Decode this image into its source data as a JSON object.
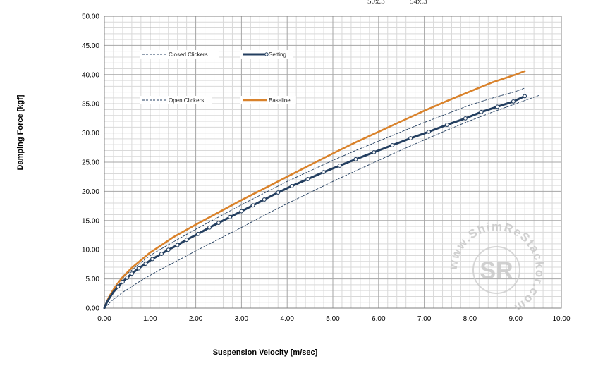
{
  "top_clipped_labels": [
    "50x.3",
    "54x.3"
  ],
  "watermark": {
    "monogram": "SR",
    "ring_text": "www.ShimReStackor.com"
  },
  "chart_data": {
    "type": "line",
    "xlabel": "Suspension Velocity [m/sec]",
    "ylabel": "Damping Force [kgf]",
    "xlim": [
      0,
      10
    ],
    "ylim": [
      0,
      50
    ],
    "x_ticks": [
      "0.00",
      "1.00",
      "2.00",
      "3.00",
      "4.00",
      "5.00",
      "6.00",
      "7.00",
      "8.00",
      "9.00",
      "10.00"
    ],
    "y_ticks": [
      "0.00",
      "5.00",
      "10.00",
      "15.00",
      "20.00",
      "25.00",
      "30.00",
      "35.00",
      "40.00",
      "45.00",
      "50.00"
    ],
    "grid": true,
    "legend_position": "top-left, inside plot",
    "series": [
      {
        "name": "Setting",
        "color": "#243f60",
        "style": "solid-with-markers",
        "x": [
          0,
          0.05,
          0.1,
          0.15,
          0.2,
          0.25,
          0.3,
          0.4,
          0.5,
          0.6,
          0.75,
          0.9,
          1.05,
          1.25,
          1.4,
          1.6,
          1.8,
          2.05,
          2.3,
          2.5,
          2.75,
          3.0,
          3.25,
          3.5,
          3.8,
          4.1,
          4.45,
          4.8,
          5.15,
          5.5,
          5.9,
          6.3,
          6.7,
          7.1,
          7.5,
          7.9,
          8.25,
          8.6,
          8.95,
          9.2
        ],
        "y": [
          0,
          0.9,
          1.6,
          2.2,
          2.8,
          3.2,
          3.7,
          4.5,
          5.2,
          5.9,
          6.8,
          7.6,
          8.4,
          9.3,
          10.0,
          10.8,
          11.7,
          12.7,
          13.8,
          14.6,
          15.6,
          16.6,
          17.6,
          18.6,
          19.8,
          20.9,
          22.1,
          23.3,
          24.4,
          25.5,
          26.7,
          27.9,
          29.1,
          30.2,
          31.4,
          32.5,
          33.6,
          34.5,
          35.4,
          36.3
        ]
      },
      {
        "name": "Baseline",
        "color": "#d9822b",
        "style": "solid",
        "x": [
          0,
          0.05,
          0.1,
          0.2,
          0.3,
          0.4,
          0.6,
          0.8,
          1.0,
          1.25,
          1.5,
          2.0,
          2.5,
          3.0,
          3.5,
          4.0,
          4.5,
          5.0,
          5.5,
          6.0,
          6.5,
          7.0,
          7.5,
          8.0,
          8.5,
          9.0,
          9.2
        ],
        "y": [
          0,
          1.0,
          1.9,
          3.2,
          4.3,
          5.3,
          6.9,
          8.2,
          9.5,
          10.8,
          12.1,
          14.3,
          16.4,
          18.5,
          20.5,
          22.5,
          24.5,
          26.5,
          28.4,
          30.2,
          32.0,
          33.8,
          35.5,
          37.1,
          38.7,
          40.0,
          40.6
        ]
      },
      {
        "name": "Closed Clickers",
        "color": "#243f60",
        "style": "dashed",
        "x": [
          0,
          0.05,
          0.1,
          0.2,
          0.3,
          0.4,
          0.5,
          0.6,
          0.75,
          0.9,
          1.1,
          1.3,
          1.5,
          1.75,
          2.0,
          2.5,
          3.0,
          3.5,
          4.0,
          4.5,
          5.0,
          5.5,
          6.0,
          6.5,
          7.0,
          7.5,
          8.0,
          8.5,
          9.0,
          9.2
        ],
        "y": [
          0,
          1.1,
          2.0,
          3.3,
          4.3,
          5.1,
          5.9,
          6.5,
          7.5,
          8.4,
          9.5,
          10.4,
          11.3,
          12.4,
          13.5,
          15.6,
          17.7,
          19.7,
          21.7,
          23.5,
          25.3,
          27.0,
          28.6,
          30.2,
          31.8,
          33.3,
          34.8,
          36.0,
          37.1,
          37.7
        ]
      },
      {
        "name": "Open Clickers",
        "color": "#243f60",
        "style": "dashed",
        "x": [
          0,
          0.1,
          0.2,
          0.3,
          0.4,
          0.6,
          0.8,
          1.0,
          1.25,
          1.5,
          2.0,
          2.5,
          3.0,
          3.5,
          4.0,
          4.5,
          5.0,
          5.5,
          6.0,
          6.5,
          7.0,
          7.5,
          8.0,
          8.5,
          9.0,
          9.5
        ],
        "y": [
          0,
          0.8,
          1.5,
          2.1,
          2.7,
          3.7,
          4.7,
          5.6,
          6.7,
          7.7,
          9.8,
          11.8,
          13.8,
          15.9,
          17.9,
          19.8,
          21.7,
          23.5,
          25.3,
          27.1,
          28.8,
          30.5,
          32.1,
          33.6,
          35.0,
          36.4
        ]
      }
    ]
  }
}
